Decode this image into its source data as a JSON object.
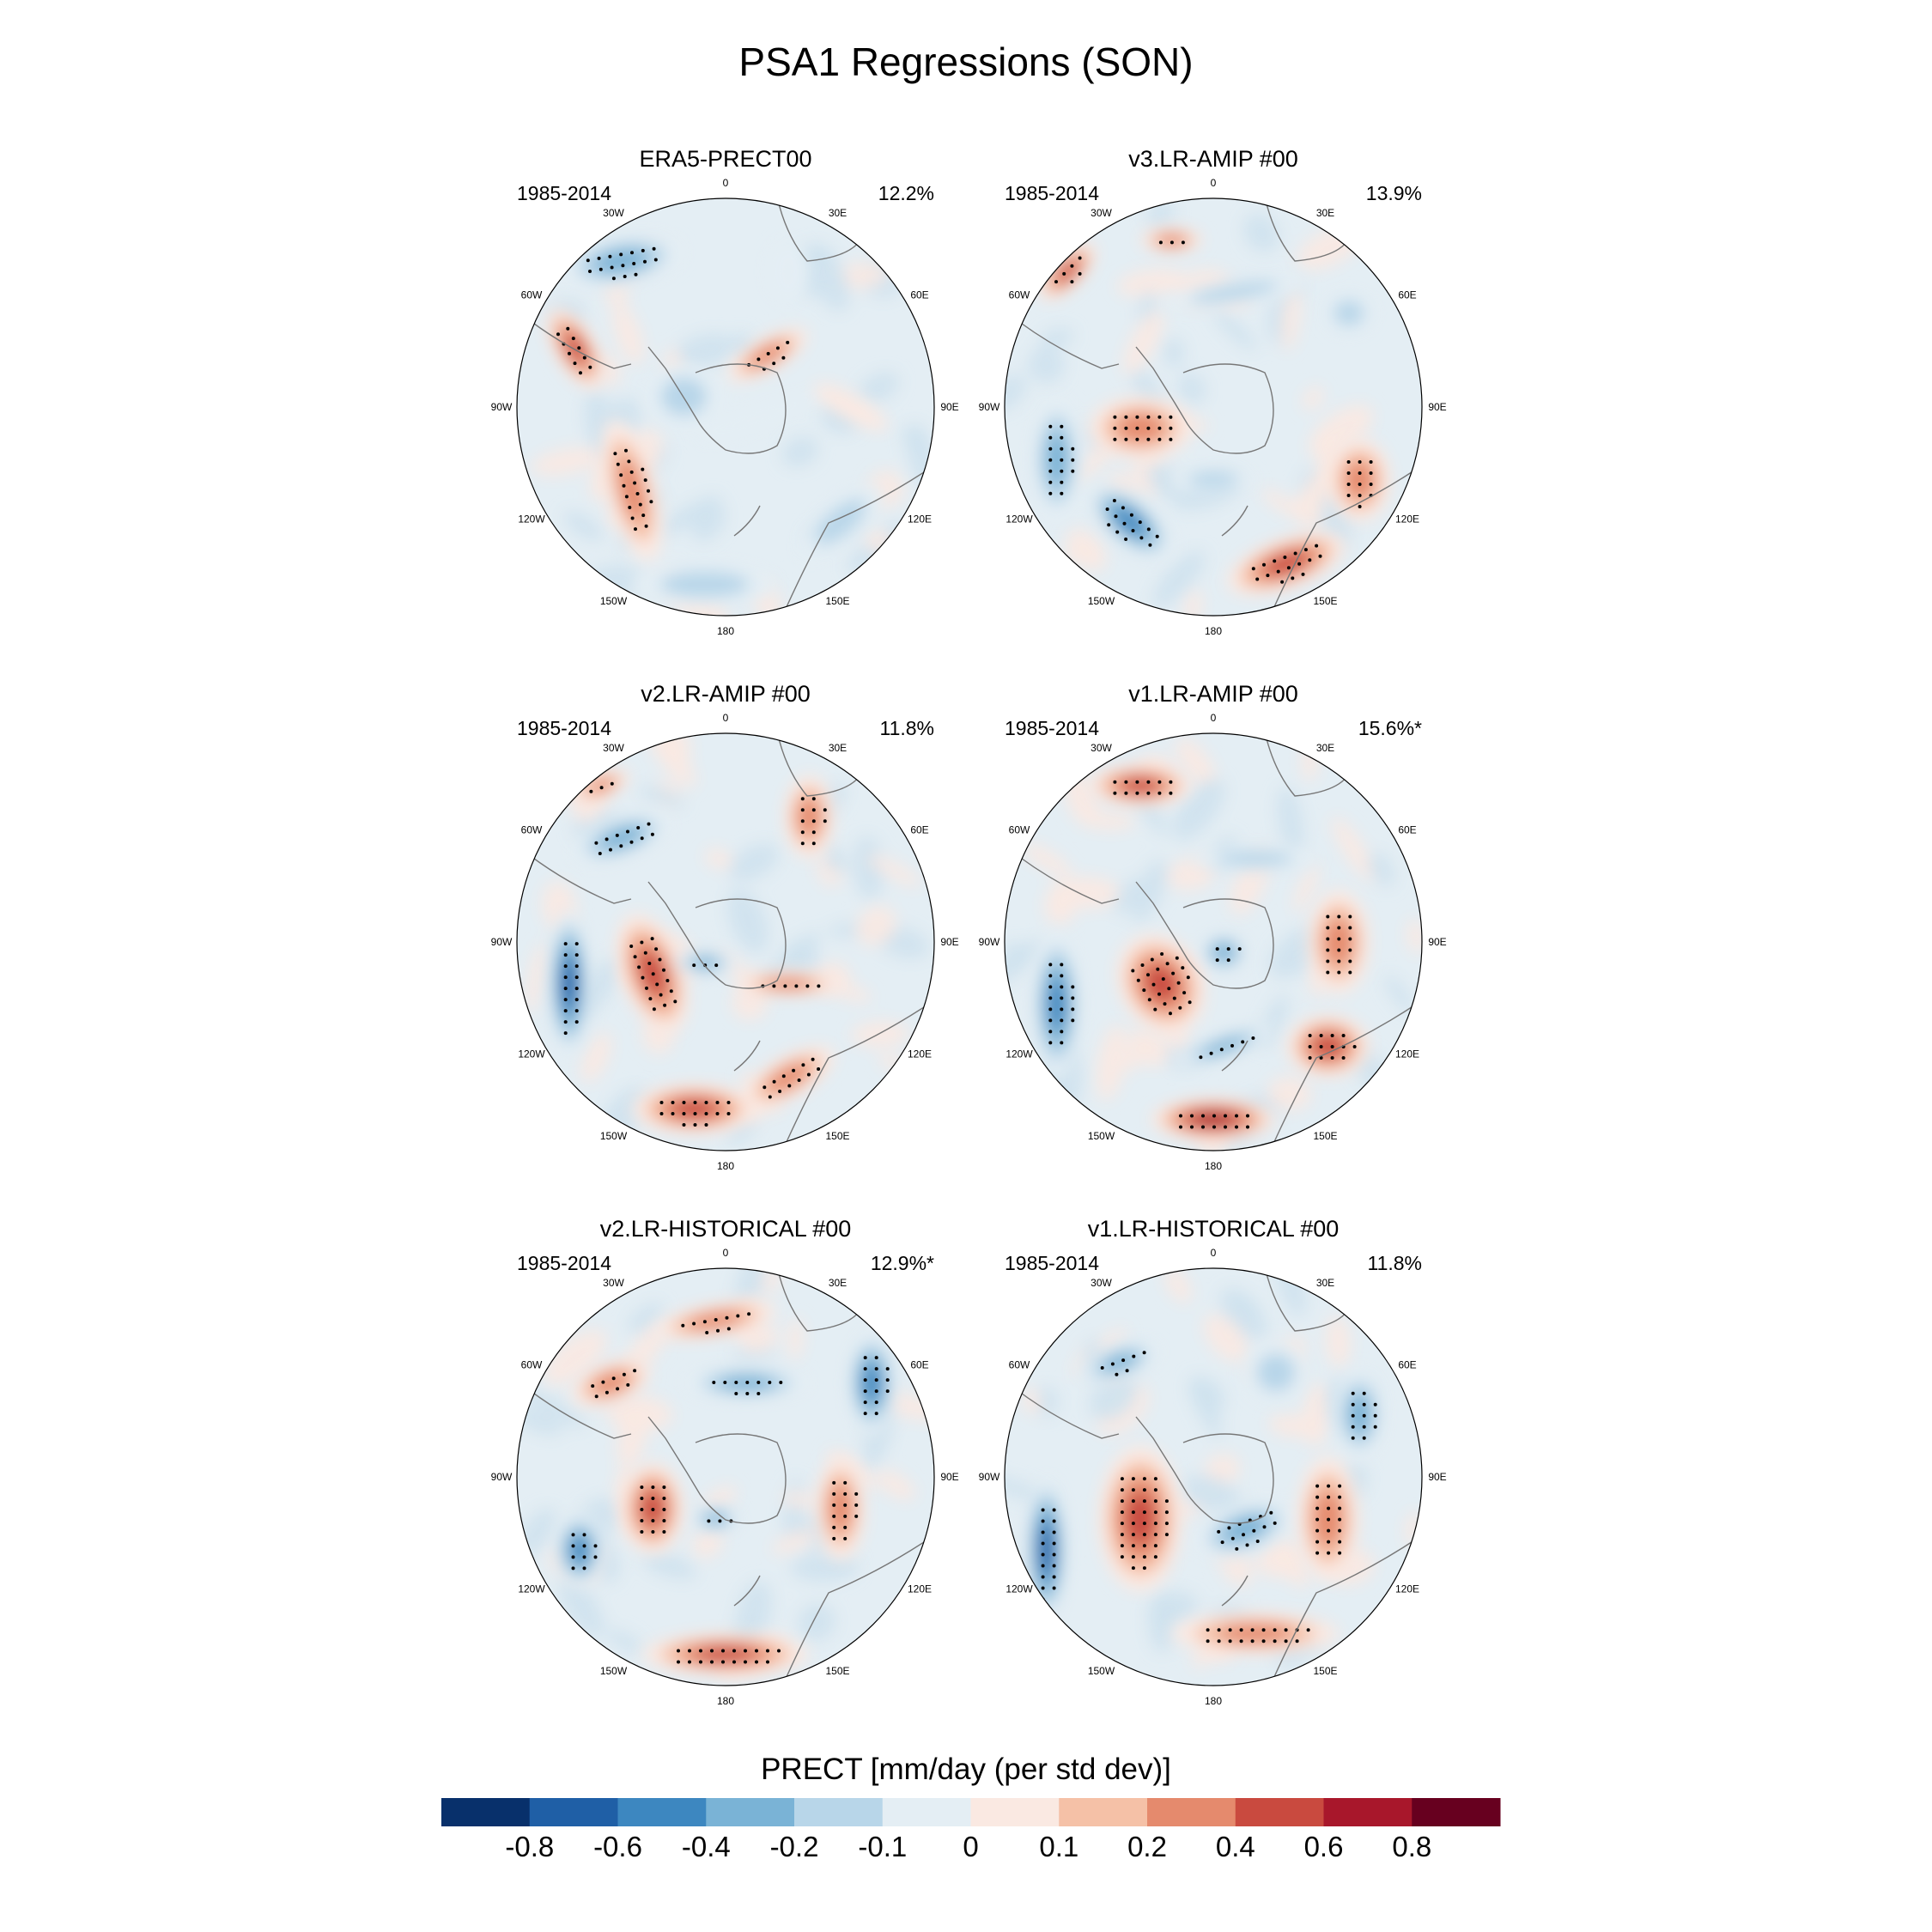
{
  "title": "PSA1 Regressions (SON)",
  "panels": [
    {
      "name": "ERA5-PRECT00",
      "years": "1985-2014",
      "pct": "12.2%",
      "blobs": [
        [
          -0.5,
          -0.7,
          0.3,
          0.12,
          -10,
          -3
        ],
        [
          -0.72,
          -0.28,
          0.22,
          0.1,
          60,
          4
        ],
        [
          -0.45,
          0.4,
          0.12,
          0.35,
          -15,
          3
        ],
        [
          0.2,
          -0.25,
          0.22,
          0.08,
          -30,
          3
        ],
        [
          0.15,
          0.05,
          0.3,
          0.05,
          -20,
          -1
        ],
        [
          -0.1,
          0.85,
          0.35,
          0.1,
          0,
          -2
        ],
        [
          0.55,
          0.55,
          0.25,
          0.1,
          -40,
          -2
        ],
        [
          -0.2,
          -0.05,
          0.18,
          0.15,
          0,
          -2
        ],
        [
          0.6,
          0.0,
          0.2,
          0.06,
          30,
          1
        ],
        [
          0.3,
          -0.65,
          0.1,
          0.15,
          0,
          -1
        ]
      ]
    },
    {
      "name": "v3.LR-AMIP  #00",
      "years": "1985-2014",
      "pct": "13.9%",
      "blobs": [
        [
          -0.7,
          -0.65,
          0.18,
          0.08,
          -45,
          4
        ],
        [
          -0.35,
          0.1,
          0.25,
          0.15,
          0,
          3
        ],
        [
          -0.75,
          0.25,
          0.12,
          0.3,
          0,
          -3
        ],
        [
          -0.4,
          0.55,
          0.25,
          0.12,
          40,
          -4
        ],
        [
          0.35,
          0.75,
          0.3,
          0.12,
          -20,
          4
        ],
        [
          0.7,
          0.35,
          0.15,
          0.2,
          0,
          3
        ],
        [
          0.1,
          -0.55,
          0.35,
          0.06,
          -10,
          -2
        ],
        [
          0.65,
          -0.45,
          0.12,
          0.1,
          0,
          -2
        ],
        [
          0.0,
          0.35,
          0.2,
          0.06,
          0,
          -2
        ],
        [
          -0.2,
          -0.8,
          0.15,
          0.06,
          0,
          3
        ]
      ]
    },
    {
      "name": "v2.LR-AMIP  #00",
      "years": "1985-2014",
      "pct": "11.8%",
      "blobs": [
        [
          -0.75,
          0.2,
          0.1,
          0.35,
          0,
          -5
        ],
        [
          -0.35,
          0.15,
          0.15,
          0.3,
          -20,
          4
        ],
        [
          -0.15,
          0.8,
          0.3,
          0.12,
          0,
          4
        ],
        [
          0.3,
          0.65,
          0.25,
          0.1,
          -30,
          3
        ],
        [
          -0.5,
          -0.5,
          0.25,
          0.1,
          -20,
          -3
        ],
        [
          -0.6,
          -0.75,
          0.15,
          0.06,
          -20,
          3
        ],
        [
          0.4,
          -0.6,
          0.12,
          0.2,
          0,
          3
        ],
        [
          -0.1,
          0.1,
          0.15,
          0.06,
          0,
          -3
        ],
        [
          0.3,
          0.2,
          0.25,
          0.06,
          0,
          3
        ]
      ]
    },
    {
      "name": "v1.LR-AMIP  #00",
      "years": "1985-2014",
      "pct": "15.6%*",
      "blobs": [
        [
          -0.35,
          -0.75,
          0.25,
          0.1,
          0,
          4
        ],
        [
          -0.75,
          0.3,
          0.12,
          0.35,
          0,
          -4
        ],
        [
          -0.25,
          0.2,
          0.2,
          0.25,
          -30,
          4
        ],
        [
          0.0,
          0.85,
          0.3,
          0.1,
          0,
          5
        ],
        [
          0.55,
          0.5,
          0.2,
          0.15,
          0,
          4
        ],
        [
          0.05,
          0.5,
          0.25,
          0.06,
          -20,
          -3
        ],
        [
          0.05,
          0.05,
          0.12,
          0.1,
          0,
          -3
        ],
        [
          0.6,
          0.0,
          0.15,
          0.25,
          0,
          3
        ],
        [
          0.2,
          -0.4,
          0.3,
          0.06,
          0,
          -2
        ]
      ]
    },
    {
      "name": "v2.LR-HISTORICAL  #00",
      "years": "1985-2014",
      "pct": "12.9%*",
      "blobs": [
        [
          -0.05,
          -0.75,
          0.3,
          0.08,
          -10,
          3
        ],
        [
          0.1,
          -0.45,
          0.3,
          0.08,
          0,
          -3
        ],
        [
          0.7,
          -0.45,
          0.12,
          0.25,
          0,
          -4
        ],
        [
          0.55,
          0.15,
          0.12,
          0.25,
          0,
          3
        ],
        [
          -0.35,
          0.15,
          0.15,
          0.22,
          0,
          4
        ],
        [
          0.0,
          0.85,
          0.4,
          0.1,
          0,
          4
        ],
        [
          -0.7,
          0.35,
          0.12,
          0.18,
          0,
          -4
        ],
        [
          -0.55,
          -0.45,
          0.2,
          0.1,
          -20,
          3
        ],
        [
          -0.05,
          0.2,
          0.12,
          0.06,
          0,
          -3
        ]
      ]
    },
    {
      "name": "v1.LR-HISTORICAL  #00",
      "years": "1985-2014",
      "pct": "11.8%",
      "blobs": [
        [
          -0.8,
          0.35,
          0.1,
          0.35,
          0,
          -5
        ],
        [
          -0.35,
          0.2,
          0.2,
          0.35,
          0,
          4
        ],
        [
          0.15,
          0.25,
          0.25,
          0.12,
          -20,
          -3
        ],
        [
          0.55,
          0.2,
          0.15,
          0.3,
          0,
          3
        ],
        [
          0.7,
          -0.3,
          0.12,
          0.22,
          0,
          -3
        ],
        [
          -0.45,
          -0.55,
          0.2,
          0.08,
          -20,
          -3
        ],
        [
          0.2,
          0.75,
          0.4,
          0.1,
          0,
          3
        ],
        [
          0.3,
          -0.5,
          0.15,
          0.15,
          0,
          -2
        ]
      ]
    }
  ],
  "lon_labels": [
    "0",
    "30E",
    "60E",
    "90E",
    "120E",
    "150E",
    "180",
    "150W",
    "120W",
    "90W",
    "60W",
    "30W"
  ],
  "colorbar": {
    "label": "PRECT [mm/day (per std dev)]",
    "colors": [
      "#08306b",
      "#1f5fa6",
      "#3d87c0",
      "#7ab3d6",
      "#b8d6e9",
      "#e4eef4",
      "#fae9e2",
      "#f5c1a7",
      "#e58a6d",
      "#c94a3f",
      "#a8172b",
      "#67001f"
    ],
    "ticks": [
      "-0.8",
      "-0.6",
      "-0.4",
      "-0.2",
      "-0.1",
      "0",
      "0.1",
      "0.2",
      "0.4",
      "0.6",
      "0.8"
    ]
  }
}
